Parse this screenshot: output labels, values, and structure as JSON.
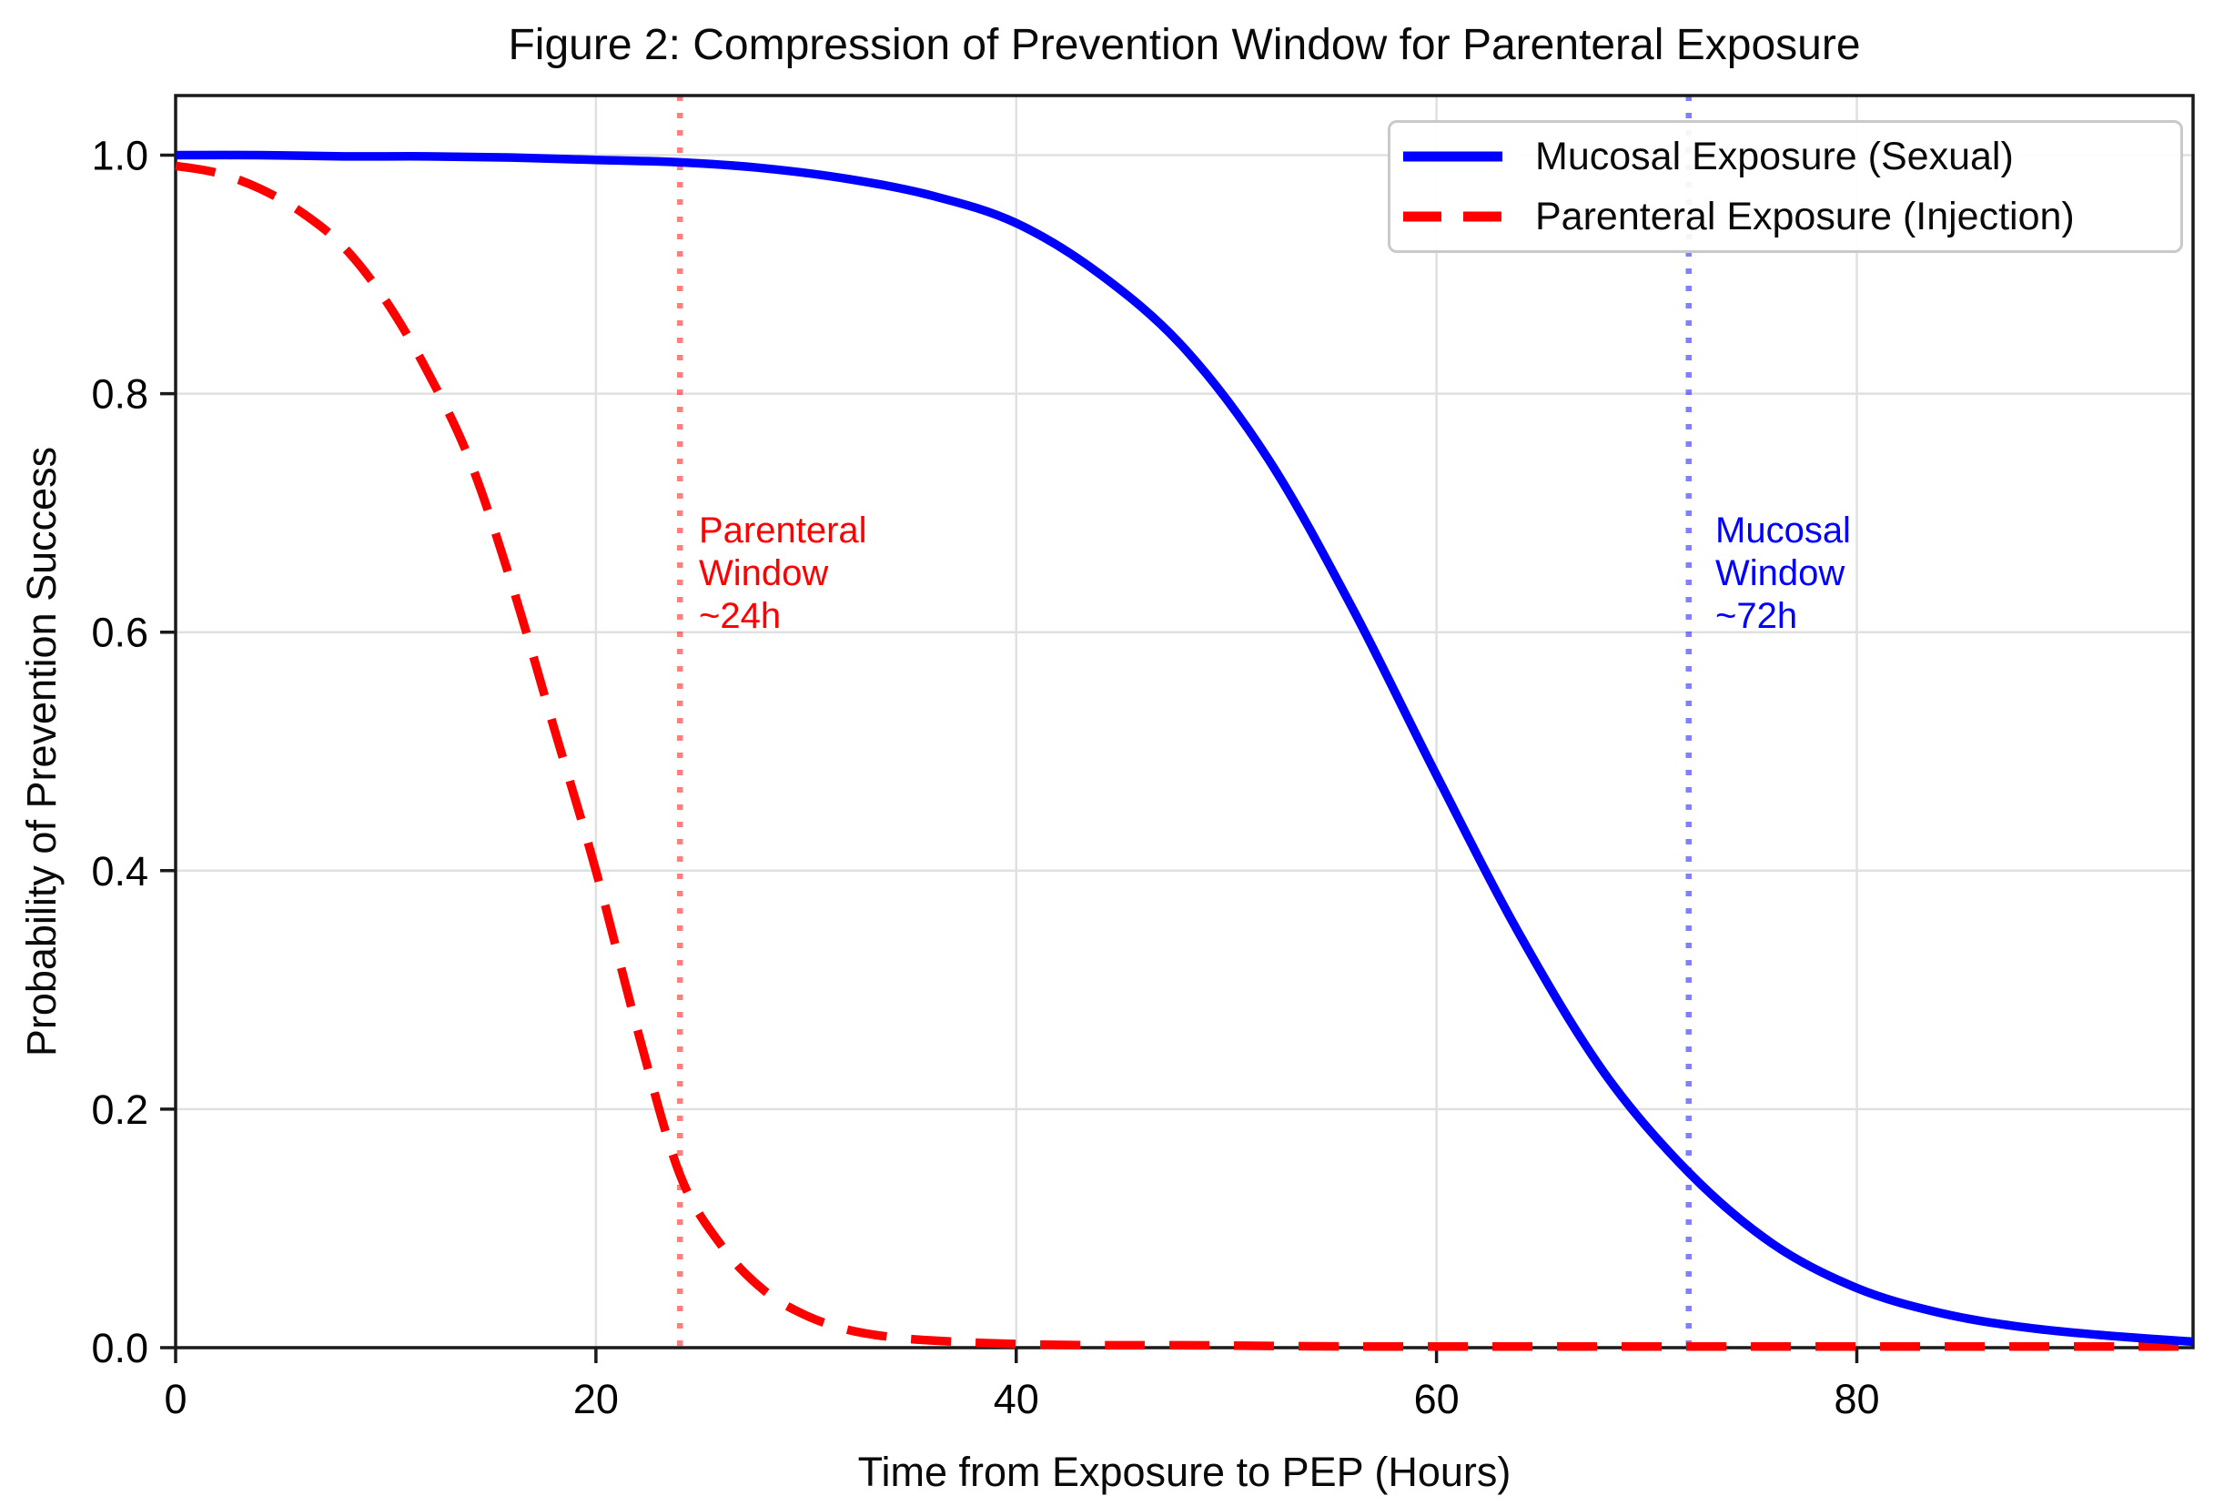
{
  "chart_data": {
    "type": "line",
    "title": "Figure 2: Compression of Prevention Window for Parenteral Exposure",
    "xlabel": "Time from Exposure to PEP (Hours)",
    "ylabel": "Probability of Prevention Success",
    "xlim": [
      0,
      96
    ],
    "ylim": [
      0,
      1.05
    ],
    "grid": true,
    "grid_color": "#e0e0e0",
    "spine_color": "#1a1a1a",
    "legend_position": "upper right",
    "x_ticks": [
      {
        "v": 0,
        "label": "0"
      },
      {
        "v": 20,
        "label": "20"
      },
      {
        "v": 40,
        "label": "40"
      },
      {
        "v": 60,
        "label": "60"
      },
      {
        "v": 80,
        "label": "80"
      }
    ],
    "y_ticks": [
      {
        "v": 0.0,
        "label": "0.0"
      },
      {
        "v": 0.2,
        "label": "0.2"
      },
      {
        "v": 0.4,
        "label": "0.4"
      },
      {
        "v": 0.6,
        "label": "0.6"
      },
      {
        "v": 0.8,
        "label": "0.8"
      },
      {
        "v": 1.0,
        "label": "1.0"
      }
    ],
    "series": [
      {
        "name": "Mucosal Exposure (Sexual)",
        "color": "#0000ff",
        "line_style": "solid",
        "x": [
          0,
          4,
          8,
          12,
          16,
          20,
          24,
          28,
          32,
          36,
          40,
          44,
          48,
          52,
          56,
          60,
          64,
          68,
          72,
          76,
          80,
          84,
          88,
          92,
          96
        ],
        "y": [
          1.0,
          1.0,
          0.999,
          0.999,
          0.998,
          0.996,
          0.994,
          0.989,
          0.98,
          0.966,
          0.943,
          0.9,
          0.838,
          0.745,
          0.62,
          0.48,
          0.345,
          0.23,
          0.147,
          0.087,
          0.05,
          0.029,
          0.017,
          0.01,
          0.005
        ]
      },
      {
        "name": "Parenteral Exposure (Injection)",
        "color": "#ff0000",
        "line_style": "dashed",
        "x": [
          0,
          2,
          4,
          6,
          8,
          10,
          12,
          14,
          16,
          18,
          20,
          22,
          24,
          26,
          28,
          30,
          32,
          34,
          36,
          40,
          44,
          48,
          56,
          64,
          72,
          80,
          88,
          96
        ],
        "y": [
          0.991,
          0.985,
          0.972,
          0.952,
          0.923,
          0.878,
          0.818,
          0.744,
          0.64,
          0.52,
          0.4,
          0.265,
          0.145,
          0.085,
          0.048,
          0.027,
          0.015,
          0.009,
          0.006,
          0.003,
          0.002,
          0.002,
          0.001,
          0.001,
          0.001,
          0.001,
          0.001,
          0.001
        ]
      }
    ],
    "vlines": [
      {
        "x": 24,
        "color": "#ff0000",
        "opacity": 0.5,
        "line_style": "dotted"
      },
      {
        "x": 72,
        "color": "#0000ff",
        "opacity": 0.5,
        "line_style": "dotted"
      }
    ]
  },
  "annotations": {
    "parenteral": {
      "lines": [
        "Parenteral",
        "Window",
        "~24h"
      ],
      "color": "#ff0000"
    },
    "mucosal": {
      "lines": [
        "Mucosal",
        "Window",
        "~72h"
      ],
      "color": "#0000ff"
    }
  }
}
